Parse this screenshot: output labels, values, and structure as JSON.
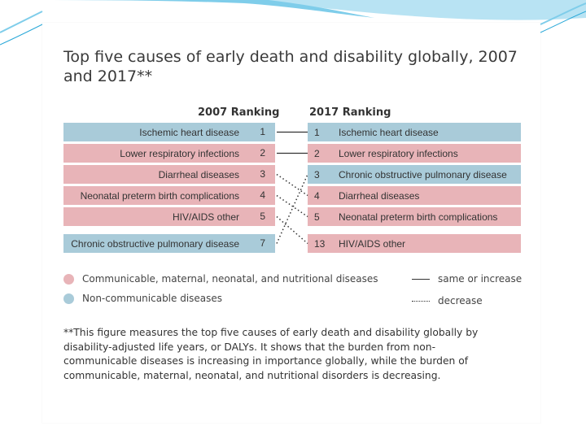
{
  "title": "Top five causes of early death and disability globally, 2007 and 2017**",
  "columns": {
    "left_header": "2007 Ranking",
    "right_header": "2017 Ranking"
  },
  "colors": {
    "communicable": "#e8b4b8",
    "non_communicable": "#a9cbd9",
    "accent": "#29a8d8"
  },
  "left_items": [
    {
      "label": "Ischemic heart disease",
      "rank": "1",
      "category": "blue"
    },
    {
      "label": "Lower respiratory infections",
      "rank": "2",
      "category": "red"
    },
    {
      "label": "Diarrheal diseases",
      "rank": "3",
      "category": "red"
    },
    {
      "label": "Neonatal preterm birth complications",
      "rank": "4",
      "category": "red"
    },
    {
      "label": "HIV/AIDS other",
      "rank": "5",
      "category": "red"
    },
    {
      "label": "Chronic obstructive pulmonary disease",
      "rank": "7",
      "category": "blue"
    }
  ],
  "right_items": [
    {
      "rank": "1",
      "label": "Ischemic heart disease",
      "category": "blue"
    },
    {
      "rank": "2",
      "label": "Lower respiratory infections",
      "category": "red"
    },
    {
      "rank": "3",
      "label": "Chronic obstructive pulmonary disease",
      "category": "blue"
    },
    {
      "rank": "4",
      "label": "Diarrheal diseases",
      "category": "red"
    },
    {
      "rank": "5",
      "label": "Neonatal preterm birth complications",
      "category": "red"
    },
    {
      "rank": "13",
      "label": "HIV/AIDS other",
      "category": "red"
    }
  ],
  "connections": [
    {
      "from": 0,
      "to": 0,
      "style": "solid"
    },
    {
      "from": 1,
      "to": 1,
      "style": "solid"
    },
    {
      "from": 2,
      "to": 3,
      "style": "dotted"
    },
    {
      "from": 3,
      "to": 4,
      "style": "dotted"
    },
    {
      "from": 4,
      "to": 5,
      "style": "dotted"
    },
    {
      "from": 5,
      "to": 2,
      "style": "dotted"
    }
  ],
  "legend": {
    "communicable": "Communicable, maternal, neonatal, and nutritional diseases",
    "non_communicable": "Non-communicable diseases",
    "same_or_increase": "same or increase",
    "decrease": "decrease"
  },
  "footnote": "**This figure measures the top five causes of early death and disability globally by disability-adjusted life years, or DALYs. It shows that the burden from non-communicable diseases is increasing in importance globally, while the burden of communicable, maternal, neonatal, and nutritional disorders is decreasing."
}
